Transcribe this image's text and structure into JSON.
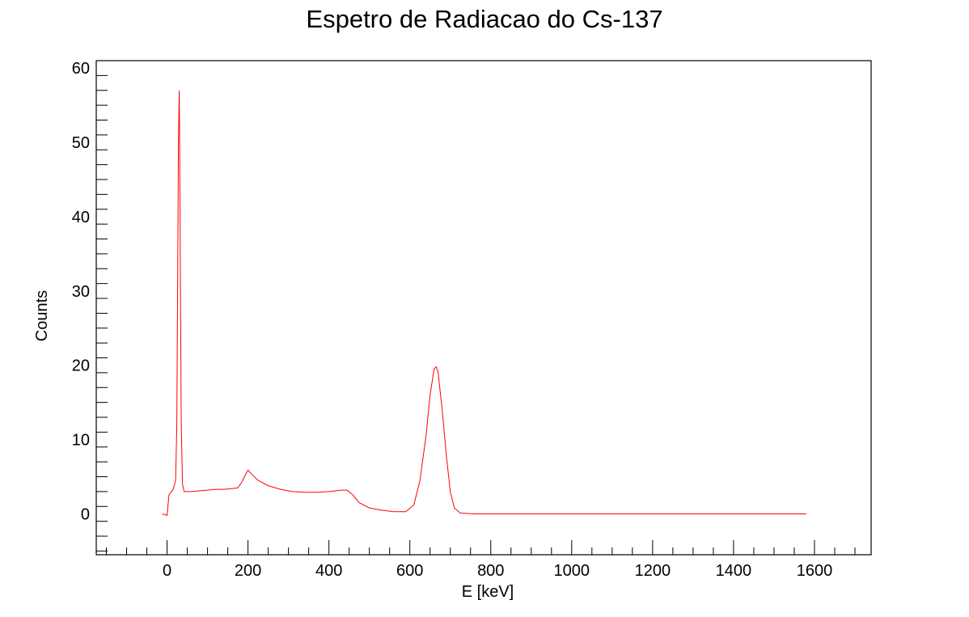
{
  "chart_data": {
    "type": "line",
    "title": "Espetro de Radiacao do Cs-137",
    "xlabel": "E [keV]",
    "ylabel": "Counts",
    "xlim": [
      -175,
      1740
    ],
    "ylim": [
      -5.5,
      61
    ],
    "x_ticks": [
      0,
      200,
      400,
      600,
      800,
      1000,
      1200,
      1400,
      1600
    ],
    "x_tick_labels": [
      "0",
      "200",
      "400",
      "600",
      "800",
      "1000",
      "1200",
      "1400",
      "1600"
    ],
    "y_ticks": [
      0,
      10,
      20,
      30,
      40,
      50,
      60
    ],
    "y_tick_labels": [
      "0",
      "10",
      "20",
      "30",
      "40",
      "50",
      "60"
    ],
    "grid": false,
    "series": [
      {
        "color": "#ff0000",
        "points": [
          [
            -12,
            0.0
          ],
          [
            -5,
            -0.1
          ],
          [
            0,
            -0.2
          ],
          [
            3,
            1.5
          ],
          [
            5,
            2.6
          ],
          [
            10,
            2.9
          ],
          [
            15,
            3.3
          ],
          [
            18,
            3.9
          ],
          [
            21,
            4.5
          ],
          [
            24,
            12.0
          ],
          [
            26,
            30.0
          ],
          [
            28,
            50.0
          ],
          [
            30,
            57.0
          ],
          [
            31,
            50.0
          ],
          [
            33,
            30.0
          ],
          [
            35,
            12.0
          ],
          [
            38,
            4.0
          ],
          [
            42,
            3.0
          ],
          [
            60,
            3.0
          ],
          [
            80,
            3.1
          ],
          [
            100,
            3.2
          ],
          [
            120,
            3.3
          ],
          [
            140,
            3.3
          ],
          [
            160,
            3.4
          ],
          [
            175,
            3.5
          ],
          [
            185,
            4.3
          ],
          [
            195,
            5.4
          ],
          [
            200,
            5.9
          ],
          [
            210,
            5.3
          ],
          [
            225,
            4.5
          ],
          [
            250,
            3.8
          ],
          [
            280,
            3.3
          ],
          [
            310,
            3.0
          ],
          [
            340,
            2.9
          ],
          [
            370,
            2.9
          ],
          [
            400,
            3.0
          ],
          [
            430,
            3.2
          ],
          [
            445,
            3.2
          ],
          [
            460,
            2.5
          ],
          [
            475,
            1.5
          ],
          [
            500,
            0.8
          ],
          [
            530,
            0.5
          ],
          [
            560,
            0.3
          ],
          [
            590,
            0.3
          ],
          [
            610,
            1.2
          ],
          [
            625,
            4.5
          ],
          [
            640,
            10.5
          ],
          [
            650,
            16.0
          ],
          [
            660,
            19.5
          ],
          [
            665,
            19.8
          ],
          [
            670,
            19.0
          ],
          [
            680,
            14.0
          ],
          [
            690,
            8.0
          ],
          [
            700,
            3.0
          ],
          [
            710,
            0.8
          ],
          [
            725,
            0.1
          ],
          [
            760,
            0.0
          ],
          [
            900,
            0.0
          ],
          [
            1100,
            0.0
          ],
          [
            1300,
            0.0
          ],
          [
            1500,
            0.0
          ],
          [
            1580,
            0.0
          ]
        ]
      }
    ]
  }
}
